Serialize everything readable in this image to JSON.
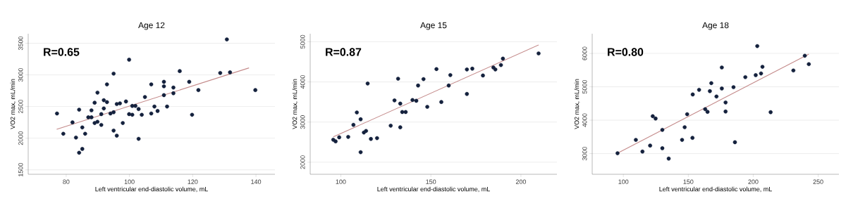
{
  "chart_data": [
    {
      "type": "scatter",
      "title": "Age 12",
      "xlabel": "Left ventricular end-diastolic volume, mL",
      "ylabel": "VO2 max, mL/min",
      "annotations": [
        "R=0.65"
      ],
      "xlim": [
        68,
        146
      ],
      "ylim": [
        1430,
        3650
      ],
      "xticks": [
        80,
        100,
        120,
        140
      ],
      "yticks": [
        1500,
        2000,
        2500,
        3000,
        3500
      ],
      "grid": "y",
      "series": [
        {
          "color": "#14213d",
          "marker": "circle",
          "x": [
            77.1,
            79.1,
            82.0,
            83.1,
            84.1,
            84.1,
            85.1,
            85.1,
            86.0,
            87.0,
            88.0,
            88.0,
            89.0,
            89.0,
            89.9,
            89.9,
            91.1,
            91.1,
            91.9,
            91.9,
            92.9,
            92.9,
            94.0,
            95.0,
            95.0,
            95.0,
            96.0,
            96.0,
            97.0,
            97.9,
            98.9,
            99.9,
            99.9,
            100.9,
            100.9,
            101.9,
            102.9,
            102.9,
            103.9,
            104.9,
            106.9,
            106.9,
            107.9,
            108.9,
            110.9,
            110.9,
            110.9,
            111.9,
            113.9,
            113.9,
            115.9,
            118.9,
            119.8,
            121.8,
            128.7,
            130.8,
            131.8,
            139.8
          ],
          "values": [
            2390,
            2070,
            2250,
            2010,
            2450,
            1770,
            2170,
            1830,
            2070,
            2330,
            2330,
            2440,
            2560,
            2240,
            2720,
            2260,
            2380,
            2210,
            2600,
            2470,
            2850,
            2570,
            2390,
            3020,
            2410,
            2120,
            2040,
            2540,
            2550,
            2240,
            2580,
            3240,
            2380,
            2370,
            2510,
            2510,
            2460,
            1990,
            2370,
            2650,
            2390,
            2850,
            2500,
            2430,
            2890,
            2820,
            2680,
            2500,
            2800,
            2710,
            3060,
            2890,
            2370,
            2760,
            3030,
            3560,
            3040,
            2760
          ]
        },
        {
          "type": "line",
          "color": "#c48a8a",
          "x": [
            77,
            137.8
          ],
          "values": [
            2140,
            3110
          ]
        }
      ]
    },
    {
      "type": "scatter",
      "title": "Age 15",
      "xlabel": "Left ventricular end-diastolic volume, mL",
      "ylabel": "VO2 max, mL/min",
      "annotations": [
        "R=0.87"
      ],
      "xlim": [
        83,
        220
      ],
      "ylim": [
        1700,
        5200
      ],
      "xticks": [
        100,
        150,
        200
      ],
      "yticks": [
        2000,
        3000,
        4000,
        5000
      ],
      "grid": "y",
      "series": [
        {
          "color": "#14213d",
          "marker": "circle",
          "x": [
            95.8,
            97.1,
            99.1,
            104.1,
            107.0,
            108.9,
            111.0,
            111.0,
            112.8,
            114.0,
            114.9,
            116.7,
            120.1,
            127.7,
            129.8,
            131.8,
            133.0,
            133.0,
            134.1,
            136.0,
            139.8,
            141.9,
            142.9,
            145.9,
            148.0,
            153.1,
            155.8,
            159.9,
            160.8,
            170.0,
            170.0,
            173.0,
            178.9,
            184.7,
            185.8,
            188.9,
            190.0,
            209.8
          ],
          "values": [
            2560,
            2520,
            2620,
            2630,
            2930,
            3240,
            3070,
            2250,
            2740,
            2780,
            3960,
            2580,
            2600,
            2910,
            3540,
            4080,
            3460,
            2870,
            3250,
            3250,
            3550,
            3530,
            3910,
            4070,
            3380,
            4320,
            3500,
            3910,
            4170,
            4310,
            3700,
            4330,
            4160,
            4360,
            4310,
            4420,
            4580,
            4710
          ]
        },
        {
          "type": "line",
          "color": "#c48a8a",
          "x": [
            95.8,
            209.8
          ],
          "values": [
            2630,
            4920
          ]
        }
      ]
    },
    {
      "type": "scatter",
      "title": "Age 18",
      "xlabel": "Left ventricular end-diastolic volume, mL",
      "ylabel": "VO2 max, mL/min",
      "annotations": [
        "R=0.80"
      ],
      "xlim": [
        76,
        266
      ],
      "ylim": [
        2380,
        6590
      ],
      "xticks": [
        100,
        150,
        200,
        250
      ],
      "yticks": [
        3000,
        4000,
        5000,
        6000
      ],
      "grid": "y",
      "series": [
        {
          "color": "#14213d",
          "marker": "circle",
          "x": [
            95.5,
            109.6,
            114.7,
            120.6,
            122.6,
            124.8,
            130.0,
            130.0,
            134.9,
            145.2,
            147.2,
            149.1,
            153.2,
            153.4,
            158.3,
            163.0,
            164.8,
            166.6,
            167.7,
            171.7,
            175.8,
            175.8,
            178.7,
            178.7,
            184.8,
            185.9,
            193.9,
            201.9,
            203.1,
            206.0,
            207.1,
            213.4,
            230.9,
            239.7,
            242.8
          ],
          "values": [
            3010,
            3410,
            3060,
            3240,
            4120,
            4050,
            3710,
            3160,
            2850,
            3410,
            3790,
            4180,
            3470,
            4770,
            4910,
            4330,
            4250,
            4870,
            5110,
            4710,
            5580,
            4950,
            4530,
            4260,
            4990,
            3340,
            5290,
            5350,
            6220,
            5400,
            5600,
            4240,
            5490,
            5930,
            5680
          ]
        },
        {
          "type": "line",
          "color": "#c48a8a",
          "x": [
            95.5,
            242.8
          ],
          "values": [
            3010,
            5980
          ]
        }
      ]
    }
  ]
}
